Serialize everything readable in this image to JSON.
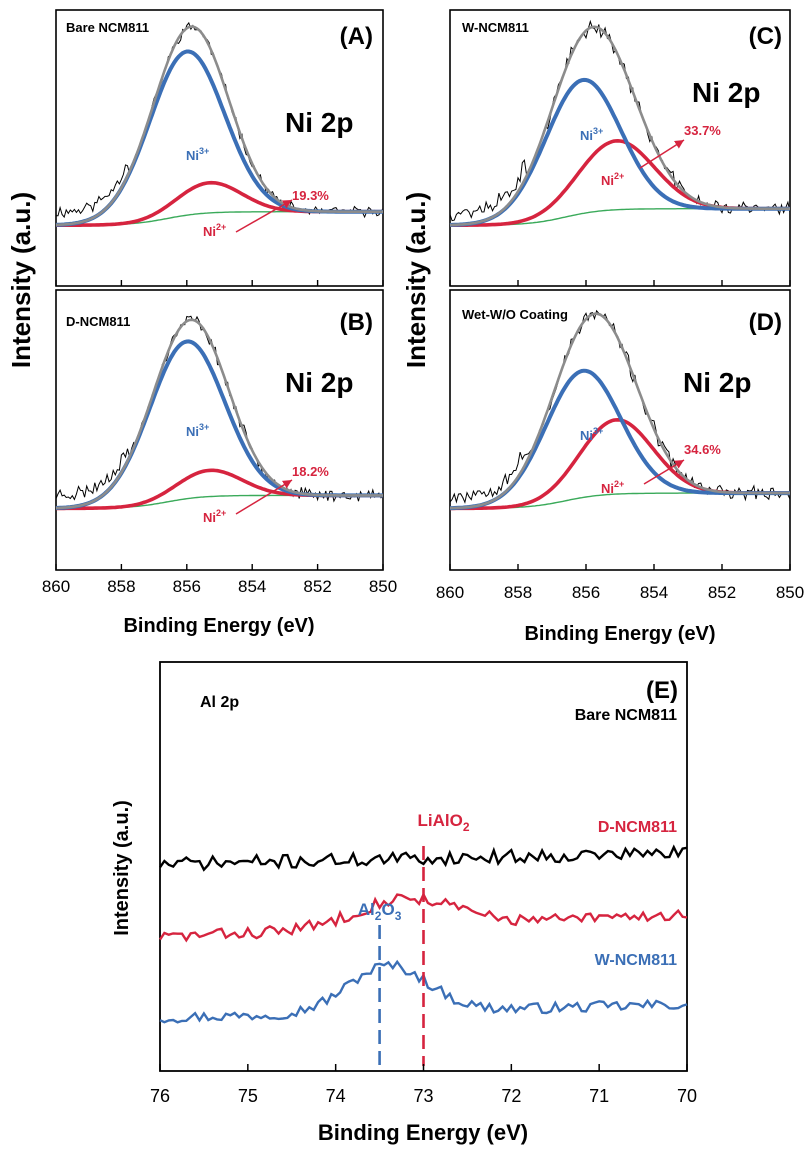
{
  "colors": {
    "raw": "#000000",
    "fit_envelope": "#8c8c8c",
    "ni3": "#3b6fb6",
    "ni2": "#d6243f",
    "background": "#3aaa5a",
    "axis": "#000000",
    "bare_al": "#000000",
    "d_al": "#d6243f",
    "w_al": "#3b6fb6"
  },
  "chart_data": [
    {
      "panel": "(A)",
      "type": "line",
      "sample_label": "Bare NCM811",
      "region_label": "Ni 2p",
      "xlim": [
        860,
        850
      ],
      "xticks": [],
      "xlabel": "",
      "ylabel": "",
      "peaks": {
        "ni3": {
          "label": "Ni",
          "sup": "3+",
          "center_eV": 856.0,
          "fwhm_eV": 2.7,
          "height": 0.76
        },
        "ni2": {
          "label": "Ni",
          "sup": "2+",
          "center_eV": 855.3,
          "fwhm_eV": 2.3,
          "height": 0.14
        }
      },
      "background_level": 0.18,
      "noise": 0.035,
      "seed": 11,
      "annotation": "19.3%"
    },
    {
      "panel": "(B)",
      "type": "line",
      "sample_label": "D-NCM811",
      "region_label": "Ni 2p",
      "xlim": [
        860,
        850
      ],
      "xticks": [
        "860",
        "858",
        "856",
        "854",
        "852",
        "850"
      ],
      "xlabel": "Binding Energy (eV)",
      "ylabel": "",
      "peaks": {
        "ni3": {
          "label": "Ni",
          "sup": "3+",
          "center_eV": 856.0,
          "fwhm_eV": 2.7,
          "height": 0.72
        },
        "ni2": {
          "label": "Ni",
          "sup": "2+",
          "center_eV": 855.3,
          "fwhm_eV": 2.3,
          "height": 0.12
        }
      },
      "background_level": 0.17,
      "noise": 0.04,
      "seed": 23,
      "annotation": "18.2%"
    },
    {
      "panel": "(C)",
      "type": "line",
      "sample_label": "W-NCM811",
      "region_label": "Ni 2p",
      "xlim": [
        860,
        850
      ],
      "xticks": [],
      "xlabel": "",
      "ylabel": "",
      "peaks": {
        "ni3": {
          "label": "Ni",
          "sup": "3+",
          "center_eV": 856.1,
          "fwhm_eV": 2.6,
          "height": 0.62
        },
        "ni2": {
          "label": "Ni",
          "sup": "2+",
          "center_eV": 855.1,
          "fwhm_eV": 2.6,
          "height": 0.32
        }
      },
      "background_level": 0.22,
      "noise": 0.05,
      "seed": 37,
      "annotation": "33.7%"
    },
    {
      "panel": "(D)",
      "type": "line",
      "sample_label": "Wet-W/O Coating",
      "region_label": "Ni 2p",
      "xlim": [
        860,
        850
      ],
      "xticks": [
        "860",
        "858",
        "856",
        "854",
        "852",
        "850"
      ],
      "xlabel": "Binding Energy (eV)",
      "ylabel": "",
      "peaks": {
        "ni3": {
          "label": "Ni",
          "sup": "3+",
          "center_eV": 856.1,
          "fwhm_eV": 2.6,
          "height": 0.58
        },
        "ni2": {
          "label": "Ni",
          "sup": "2+",
          "center_eV": 855.1,
          "fwhm_eV": 2.5,
          "height": 0.34
        }
      },
      "background_level": 0.2,
      "noise": 0.05,
      "seed": 53,
      "annotation": "34.6%"
    },
    {
      "panel": "(E)",
      "type": "line",
      "region_label": "Al 2p",
      "xlim": [
        76,
        70
      ],
      "xticks": [
        "76",
        "75",
        "74",
        "73",
        "72",
        "71",
        "70"
      ],
      "xlabel": "Binding Energy (eV)",
      "ylabel": "Intensity (a.u.)",
      "series": [
        {
          "name": "Bare NCM811",
          "color_key": "bare_al",
          "offset": 2.05,
          "noise": 0.09,
          "slope": 0.15,
          "seed": 71,
          "peaks": []
        },
        {
          "name": "D-NCM811",
          "color_key": "d_al",
          "offset": 1.08,
          "noise": 0.08,
          "slope": 0.3,
          "seed": 83,
          "peaks": [
            {
              "center_eV": 73.2,
              "sigma_eV": 0.55,
              "height": 0.38
            }
          ]
        },
        {
          "name": "W-NCM811",
          "color_key": "w_al",
          "offset": 0.0,
          "noise": 0.07,
          "slope": 0.18,
          "seed": 97,
          "peaks": [
            {
              "center_eV": 73.4,
              "sigma_eV": 0.45,
              "height": 0.62
            }
          ]
        }
      ],
      "reference_lines": [
        {
          "label_main": "LiAlO",
          "label_sub": "2",
          "label_suffix": "",
          "x_eV": 73.0,
          "color_key": "d_al"
        },
        {
          "label_main": "Al",
          "label_sub": "2",
          "label_suffix": "O",
          "label_sub2": "3",
          "x_eV": 73.5,
          "color_key": "w_al"
        }
      ]
    }
  ],
  "shared": {
    "ylabel_top": "Intensity (a.u.)"
  }
}
